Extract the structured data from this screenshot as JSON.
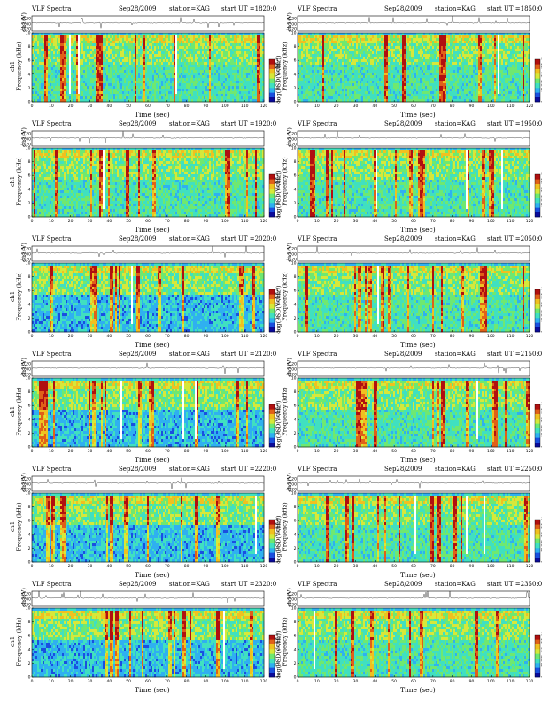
{
  "header": {
    "title": "VLF Spectra",
    "date": "Sep28/2009",
    "station": "station=KAG",
    "start_prefix": "start  UT ="
  },
  "labels": {
    "ts_ylabel": "ch1(V)",
    "spec_ylabel_ch": "ch1",
    "spec_ylabel": "Frequency (kHz)",
    "colorbar_label": "log(PSD(V²/Hz))",
    "xlabel": "Time (sec)"
  },
  "colors": {
    "colormap": [
      "#0a0a9a",
      "#1a4fe0",
      "#2fb0f0",
      "#40e0c0",
      "#6fe870",
      "#d6e83a",
      "#f0c020",
      "#e06018",
      "#b01010"
    ],
    "gap": "#ffffff"
  },
  "panels": [
    {
      "start": "1820:0"
    },
    {
      "start": "1850:0"
    },
    {
      "start": "1920:0"
    },
    {
      "start": "1950:0"
    },
    {
      "start": "2020:0"
    },
    {
      "start": "2050:0"
    },
    {
      "start": "2120:0"
    },
    {
      "start": "2150:0"
    },
    {
      "start": "2220:0"
    },
    {
      "start": "2250:0"
    },
    {
      "start": "2320:0"
    },
    {
      "start": "2350:0"
    }
  ],
  "chart_data": {
    "type": "heatmap",
    "x": {
      "label": "Time (sec)",
      "lim": [
        0,
        120
      ],
      "ticks": [
        0,
        10,
        20,
        30,
        40,
        50,
        60,
        70,
        80,
        90,
        100,
        110,
        120
      ]
    },
    "y_spectrogram": {
      "label": "Frequency (kHz)",
      "lim": [
        0,
        10
      ],
      "ticks": [
        0,
        2,
        4,
        6,
        8,
        10
      ]
    },
    "y_timeseries": {
      "label": "ch1(V)",
      "ticks": [
        "0.20",
        "0.00",
        "-0.20"
      ]
    },
    "colorbar_ticks": [
      "0",
      "-2",
      "-4",
      "-6"
    ],
    "panels_count": 12,
    "layout": "6 rows x 2 columns"
  }
}
